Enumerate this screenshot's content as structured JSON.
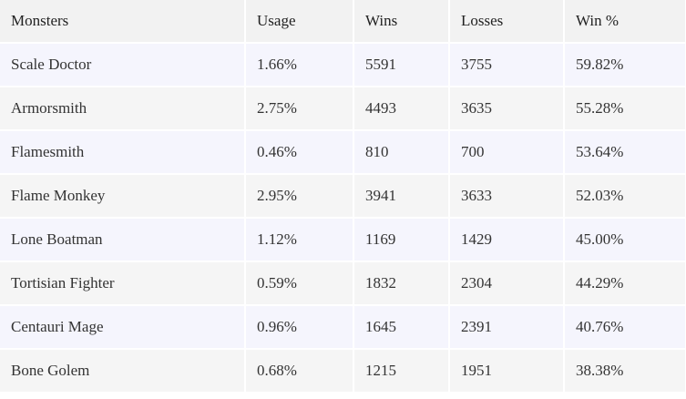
{
  "table": {
    "header": [
      "Monsters",
      "Usage",
      "Wins",
      "Losses",
      "Win %"
    ],
    "rows": [
      [
        "Scale Doctor",
        "1.66%",
        "5591",
        "3755",
        "59.82%"
      ],
      [
        "Armorsmith",
        "2.75%",
        "4493",
        "3635",
        "55.28%"
      ],
      [
        "Flamesmith",
        "0.46%",
        "810",
        "700",
        "53.64%"
      ],
      [
        "Flame Monkey",
        "2.95%",
        "3941",
        "3633",
        "52.03%"
      ],
      [
        "Lone Boatman",
        "1.12%",
        "1169",
        "1429",
        "45.00%"
      ],
      [
        "Tortisian Fighter",
        "0.59%",
        "1832",
        "2304",
        "44.29%"
      ],
      [
        "Centauri Mage",
        "0.96%",
        "1645",
        "2391",
        "40.76%"
      ],
      [
        "Bone Golem",
        "0.68%",
        "1215",
        "1951",
        "38.38%"
      ]
    ]
  }
}
